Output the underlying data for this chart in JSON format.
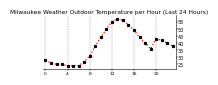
{
  "title": "Milwaukee Weather Outdoor Temperature per Hour (Last 24 Hours)",
  "hours": [
    0,
    1,
    2,
    3,
    4,
    5,
    6,
    7,
    8,
    9,
    10,
    11,
    12,
    13,
    14,
    15,
    16,
    17,
    18,
    19,
    20,
    21,
    22,
    23
  ],
  "temps": [
    28,
    26,
    25,
    25,
    24,
    24,
    24,
    27,
    31,
    38,
    44,
    50,
    55,
    57,
    56,
    53,
    49,
    44,
    40,
    36,
    43,
    42,
    40,
    38
  ],
  "line_color": "#ff0000",
  "marker_color": "#000000",
  "bg_color": "#ffffff",
  "grid_color": "#999999",
  "ylim": [
    22,
    60
  ],
  "ytick_vals": [
    25,
    30,
    35,
    40,
    45,
    50,
    55
  ],
  "ytick_labels": [
    "25",
    "30",
    "35",
    "40",
    "45",
    "50",
    "55"
  ],
  "xtick_vals": [
    0,
    4,
    8,
    12,
    16,
    20
  ],
  "xtick_labels": [
    "0",
    "4",
    "8",
    "12",
    "16",
    "20"
  ],
  "vgrid_positions": [
    0,
    4,
    8,
    12,
    16,
    20
  ],
  "ylabel_fontsize": 3.5,
  "title_fontsize": 4.2,
  "axis_tick_fontsize": 3.2,
  "line_width": 0.9,
  "marker_size": 1.3
}
